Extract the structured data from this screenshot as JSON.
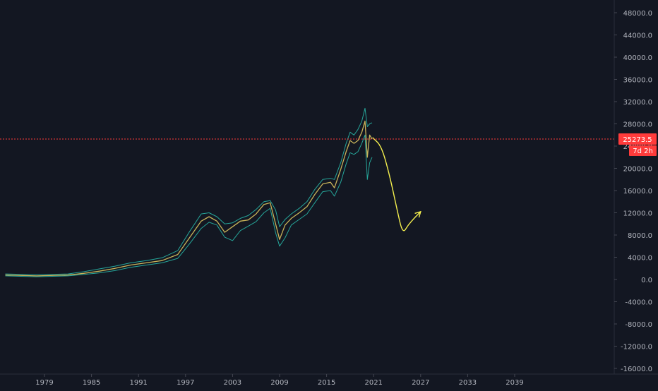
{
  "chart_data": {
    "type": "line",
    "title": "",
    "xlabel": "",
    "ylabel": "",
    "ylim": [
      -17000,
      50000
    ],
    "xlim": [
      1974.0,
      2053.0
    ],
    "grid": false,
    "y_ticks": [
      "48000.0",
      "44000.0",
      "40000.0",
      "36000.0",
      "32000.0",
      "28000.0",
      "24000.0",
      "20000.0",
      "16000.0",
      "12000.0",
      "8000.0",
      "4000.0",
      "0.0",
      "-4000.0",
      "-8000.0",
      "-12000.0",
      "-16000.0"
    ],
    "x_ticks": [
      "1979",
      "1985",
      "1991",
      "1997",
      "2003",
      "2009",
      "2015",
      "2021",
      "2027",
      "2033",
      "2039"
    ],
    "price_line": {
      "value": 25273.5,
      "label": "25273.5",
      "countdown": "7d 2h",
      "color": "#ff3b3b"
    },
    "series": [
      {
        "color": "#c9b45a",
        "x": [
          1974.0,
          1978.0,
          1982.0,
          1984.0,
          1986.0,
          1988.0,
          1990.0,
          1992.0,
          1994.0,
          1996.0,
          1997.5,
          1999.0,
          2000.0,
          2001.0,
          2002.0,
          2003.0,
          2004.0,
          2005.0,
          2006.0,
          2007.0,
          2007.8,
          2008.5,
          2009.0,
          2009.7,
          2010.5,
          2011.5,
          2012.5,
          2013.5,
          2014.5,
          2015.5,
          2016.0,
          2016.8,
          2017.5,
          2018.0,
          2018.5,
          2019.0,
          2019.5,
          2019.9,
          2020.2,
          2020.5,
          2020.8
        ],
        "values": [
          800,
          650,
          800,
          1100,
          1500,
          2000,
          2600,
          3000,
          3400,
          4500,
          7500,
          10500,
          11300,
          10500,
          8500,
          9500,
          10500,
          10700,
          11800,
          13500,
          13800,
          10000,
          7200,
          9800,
          11000,
          12000,
          13100,
          15300,
          17200,
          17500,
          16500,
          19800,
          23000,
          25000,
          24500,
          25000,
          26500,
          28500,
          22000,
          26000,
          25273
        ]
      },
      {
        "color": "#26a69a",
        "x": [
          1974.0,
          1978.0,
          1982.0,
          1984.0,
          1986.0,
          1988.0,
          1990.0,
          1992.0,
          1994.0,
          1996.0,
          1997.5,
          1999.0,
          2000.0,
          2001.0,
          2002.0,
          2003.0,
          2004.0,
          2005.0,
          2006.0,
          2007.0,
          2007.8,
          2008.5,
          2009.0,
          2009.7,
          2010.5,
          2011.5,
          2012.5,
          2013.5,
          2014.5,
          2015.5,
          2016.0,
          2016.8,
          2017.5,
          2018.0,
          2018.5,
          2019.0,
          2019.5,
          2019.9,
          2020.2,
          2020.5,
          2020.8
        ],
        "values": [
          1000,
          850,
          1000,
          1400,
          1900,
          2400,
          3000,
          3400,
          3900,
          5200,
          8600,
          11800,
          12000,
          11300,
          10000,
          10200,
          11000,
          11500,
          12600,
          14000,
          14200,
          12500,
          9500,
          10800,
          11800,
          12800,
          14000,
          16200,
          18000,
          18200,
          18000,
          21000,
          24500,
          26500,
          26000,
          27000,
          28500,
          30800,
          27500,
          28000,
          28200
        ]
      },
      {
        "color": "#26a69a",
        "x": [
          1974.0,
          1978.0,
          1982.0,
          1984.0,
          1986.0,
          1988.0,
          1990.0,
          1992.0,
          1994.0,
          1996.0,
          1997.5,
          1999.0,
          2000.0,
          2001.0,
          2002.0,
          2003.0,
          2004.0,
          2005.0,
          2006.0,
          2007.0,
          2007.8,
          2008.5,
          2009.0,
          2009.7,
          2010.5,
          2011.5,
          2012.5,
          2013.5,
          2014.5,
          2015.5,
          2016.0,
          2016.8,
          2017.5,
          2018.0,
          2018.5,
          2019.0,
          2019.5,
          2019.9,
          2020.2,
          2020.5,
          2020.8
        ],
        "values": [
          650,
          500,
          650,
          900,
          1200,
          1600,
          2200,
          2600,
          3000,
          3800,
          6400,
          9200,
          10300,
          9800,
          7600,
          7000,
          8800,
          9600,
          10400,
          12000,
          12800,
          8400,
          6000,
          7500,
          9800,
          10800,
          11800,
          13800,
          15800,
          16000,
          15000,
          17500,
          20800,
          22800,
          22500,
          23000,
          24500,
          26000,
          18000,
          21000,
          22000
        ]
      }
    ],
    "projection": {
      "color": "#f5f04e",
      "x": [
        2020.9,
        2022.0,
        2023.0,
        2024.0,
        2024.7,
        2025.4,
        2026.3,
        2027.0
      ],
      "values": [
        25500,
        24000,
        19000,
        12500,
        8200,
        9800,
        11200,
        12200
      ]
    }
  }
}
